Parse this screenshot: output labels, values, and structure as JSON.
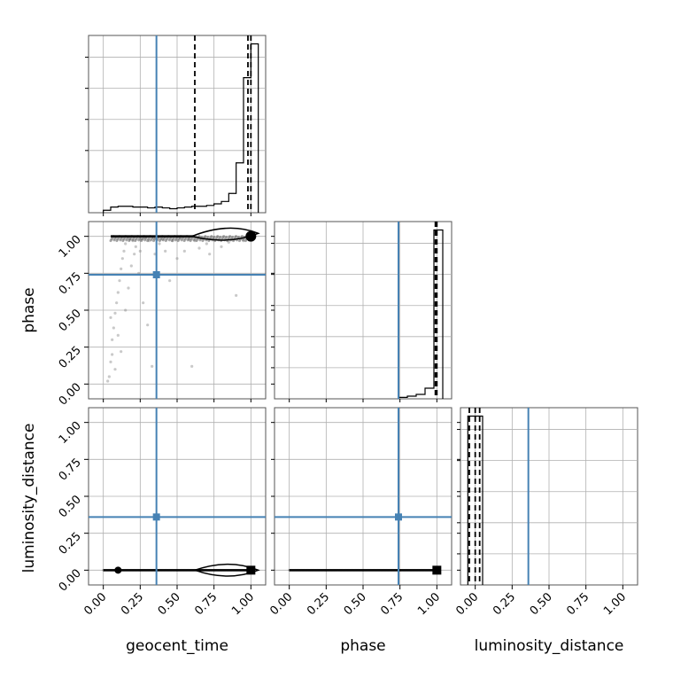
{
  "chart_data": {
    "type": "corner",
    "parameters": [
      "geocent_time",
      "phase",
      "luminosity_distance"
    ],
    "axis_labels": {
      "geocent_time": "geocent_time",
      "phase": "phase",
      "luminosity_distance": "luminosity_distance"
    },
    "tick_labels": [
      "0.00",
      "0.25",
      "0.50",
      "0.75",
      "1.00"
    ],
    "axis_range": [
      -0.1,
      1.1
    ],
    "grid": true,
    "truth": {
      "geocent_time": 0.36,
      "phase": 0.74,
      "luminosity_distance": 0.36
    },
    "truth_color": "#4682b4",
    "marginals": {
      "geocent_time": {
        "bin_edges": [
          0.0,
          0.05,
          0.1,
          0.15,
          0.2,
          0.25,
          0.3,
          0.35,
          0.4,
          0.45,
          0.5,
          0.55,
          0.6,
          0.65,
          0.7,
          0.75,
          0.8,
          0.85,
          0.9,
          0.95,
          1.0,
          1.05
        ],
        "counts": [
          0.015,
          0.035,
          0.04,
          0.04,
          0.035,
          0.035,
          0.03,
          0.035,
          0.03,
          0.025,
          0.03,
          0.035,
          0.04,
          0.04,
          0.045,
          0.055,
          0.07,
          0.12,
          0.31,
          0.84,
          1.05
        ],
        "quantiles": [
          0.62,
          0.98,
          1.0
        ]
      },
      "phase": {
        "bin_edges": [
          0.74,
          0.8,
          0.86,
          0.92,
          0.98,
          1.04
        ],
        "counts": [
          0.008,
          0.015,
          0.025,
          0.06,
          0.95
        ],
        "quantiles": [
          0.99,
          1.0
        ]
      },
      "luminosity_distance": {
        "bin_edges": [
          -0.05,
          0.0,
          0.05
        ],
        "counts": [
          1.0,
          1.0
        ],
        "quantiles": [
          -0.04,
          0.0,
          0.03
        ]
      }
    },
    "samples_2d": {
      "geocent_time_vs_phase": {
        "note_points": [
          [
            0.03,
            0.02
          ],
          [
            0.04,
            0.05
          ],
          [
            0.05,
            0.15
          ],
          [
            0.06,
            0.3
          ],
          [
            0.07,
            0.38
          ],
          [
            0.08,
            0.48
          ],
          [
            0.09,
            0.55
          ],
          [
            0.1,
            0.62
          ],
          [
            0.11,
            0.7
          ],
          [
            0.12,
            0.78
          ],
          [
            0.13,
            0.85
          ],
          [
            0.14,
            0.9
          ],
          [
            0.15,
            0.95
          ],
          [
            0.18,
            0.98
          ],
          [
            0.2,
            0.97
          ],
          [
            0.22,
            0.93
          ],
          [
            0.25,
            0.9
          ],
          [
            0.27,
            0.55
          ],
          [
            0.3,
            0.4
          ],
          [
            0.33,
            0.12
          ],
          [
            0.35,
            0.88
          ],
          [
            0.38,
            0.95
          ],
          [
            0.42,
            0.9
          ],
          [
            0.45,
            0.7
          ],
          [
            0.5,
            0.85
          ],
          [
            0.55,
            0.9
          ],
          [
            0.6,
            0.12
          ],
          [
            0.65,
            0.92
          ],
          [
            0.7,
            0.95
          ],
          [
            0.72,
            0.88
          ],
          [
            0.8,
            0.93
          ],
          [
            0.85,
            0.96
          ],
          [
            0.9,
            0.6
          ],
          [
            0.95,
            0.97
          ],
          [
            0.05,
            0.45
          ],
          [
            0.06,
            0.2
          ],
          [
            0.08,
            0.1
          ],
          [
            0.1,
            0.33
          ],
          [
            0.12,
            0.22
          ],
          [
            0.15,
            0.5
          ],
          [
            0.17,
            0.65
          ],
          [
            0.19,
            0.8
          ],
          [
            0.21,
            0.88
          ],
          [
            0.24,
            0.75
          ],
          [
            0.26,
            0.98
          ],
          [
            0.28,
            0.99
          ],
          [
            0.31,
            0.97
          ],
          [
            0.34,
            0.99
          ],
          [
            0.4,
            0.98
          ],
          [
            0.47,
            0.97
          ],
          [
            0.52,
            0.99
          ],
          [
            0.58,
            0.98
          ],
          [
            0.62,
            0.97
          ]
        ]
      },
      "geocent_time_vs_luminosity_distance": {
        "band_value": 0.0,
        "band_x_range": [
          0.0,
          1.0
        ]
      },
      "phase_vs_luminosity_distance": {
        "band_value": 0.0,
        "band_x_range": [
          0.0,
          1.0
        ]
      }
    }
  }
}
